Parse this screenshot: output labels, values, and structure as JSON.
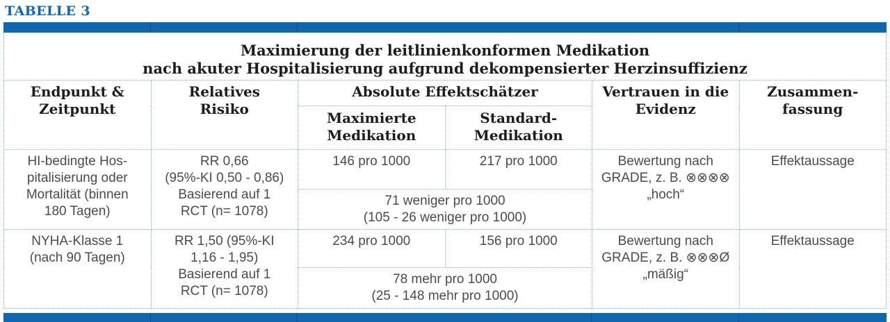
{
  "heading": "TABELLE 3",
  "colors": {
    "accent_blue": "#0e67af",
    "dotted_border_blue": "#8ab2d8",
    "body_text": "#4b4b4d",
    "header_text": "#1d1d1b"
  },
  "table": {
    "title": "Maximierung der leitlinienkonformen Medikation\nnach akuter Hospitalisierung aufgrund dekompensierter Herzinsuffizienz",
    "headers": {
      "endpoint": "Endpunkt &\nZeitpunkt",
      "relative_risk": "Relatives\nRisiko",
      "absolute_effects": "Absolute Effektschätzer",
      "maximized": "Maximierte\nMedikation",
      "standard": "Standard-\nMedikation",
      "evidence": "Vertrauen in die\nEvidenz",
      "summary": "Zusammen-\nfassung"
    },
    "rows": [
      {
        "endpoint": "HI-bedingte Hos-\npitalisierung oder\nMortalität (binnen\n180 Tagen)",
        "relative_risk": "RR 0,66\n(95%-KI 0,50 - 0,86)\nBasierend auf 1\nRCT (n= 1078)",
        "maximized_value": "146 pro 1000",
        "standard_value": "217 pro 1000",
        "absolute_difference": "71 weniger pro 1000\n(105 - 26 weniger pro 1000)",
        "evidence": "Bewertung nach\nGRADE, z. B. ⊗⊗⊗⊗\n„hoch“",
        "summary": "Effektaussage"
      },
      {
        "endpoint": "NYHA-Klasse 1\n(nach 90 Tagen)",
        "relative_risk": "RR 1,50 (95%-KI\n1,16 - 1,95)\nBasierend auf 1\nRCT (n= 1078)",
        "maximized_value": "234 pro 1000",
        "standard_value": "156 pro 1000",
        "absolute_difference": "78 mehr pro 1000\n(25 - 148 mehr pro 1000)",
        "evidence": "Bewertung nach\nGRADE, z. B. ⊗⊗⊗Ø\n„mäßig“",
        "summary": "Effektaussage"
      }
    ]
  }
}
